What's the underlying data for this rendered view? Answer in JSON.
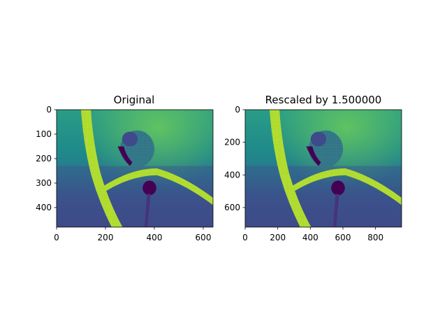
{
  "chart_data": [
    {
      "type": "heatmap",
      "title": "Original",
      "colormap": "viridis",
      "image": "grayscale photo of a parrot perched on a diagonal branch",
      "xlim": [
        0,
        640
      ],
      "ylim": [
        480,
        0
      ],
      "xticks": [
        0,
        200,
        400,
        600
      ],
      "yticks": [
        0,
        100,
        200,
        300,
        400
      ],
      "xtick_labels": [
        "0",
        "200",
        "400",
        "600"
      ],
      "ytick_labels": [
        "0",
        "100",
        "200",
        "300",
        "400"
      ]
    },
    {
      "type": "heatmap",
      "title": "Rescaled by 1.500000",
      "colormap": "viridis",
      "image": "same parrot photo rescaled by factor 1.5",
      "xlim": [
        0,
        960
      ],
      "ylim": [
        720,
        0
      ],
      "xticks": [
        0,
        200,
        400,
        600,
        800
      ],
      "yticks": [
        0,
        200,
        400,
        600
      ],
      "xtick_labels": [
        "0",
        "200",
        "400",
        "600",
        "800"
      ],
      "ytick_labels": [
        "0",
        "200",
        "400",
        "600"
      ]
    }
  ],
  "colors": {
    "viridis_dark": "#3b2a6e",
    "viridis_mid": "#21908d",
    "viridis_light": "#5dc863",
    "viridis_bright": "#d9e51d"
  }
}
